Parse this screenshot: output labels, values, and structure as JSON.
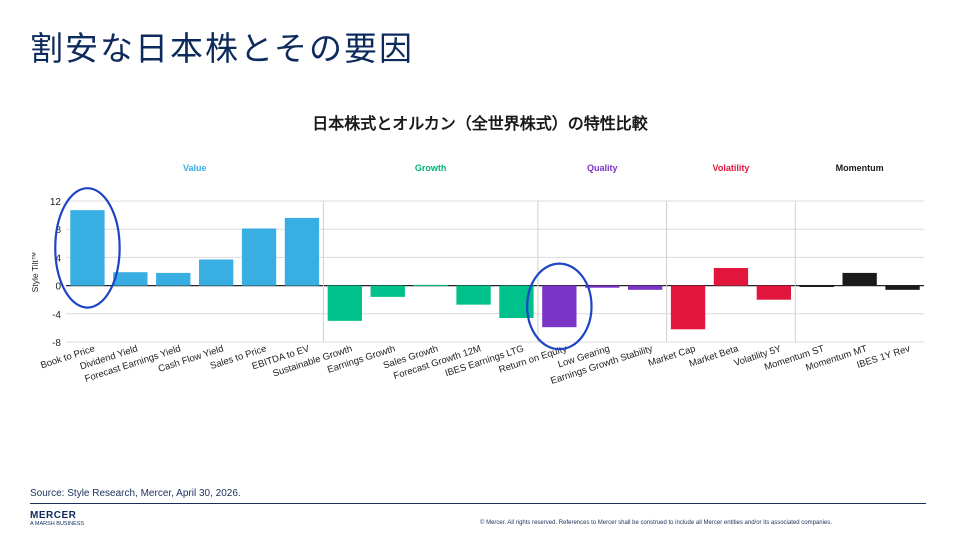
{
  "slide": {
    "title": "割安な日本株とその要因",
    "source": "Source: Style Research, Mercer, April 30, 2026.",
    "copyright": "© Mercer. All rights reserved. References to Mercer shall be construed to include all Mercer entities and/or its associated companies.",
    "logo": {
      "brand": "MERCER",
      "tagline": "A MARSH BUSINESS"
    }
  },
  "chart_data": {
    "type": "bar",
    "title": "日本株式とオルカン（全世界株式）の特性比較",
    "ylabel": "Style Tilt™",
    "ylim": [
      -8,
      12
    ],
    "yticks": [
      -8,
      -4,
      0,
      4,
      8,
      12
    ],
    "grid": true,
    "groups": [
      {
        "name": "Value",
        "color": "#39aee3",
        "label_color": "#39aee3"
      },
      {
        "name": "Growth",
        "color": "#00c08b",
        "label_color": "#00b07d"
      },
      {
        "name": "Quality",
        "color": "#7a35c7",
        "label_color": "#7a35c7"
      },
      {
        "name": "Volatility",
        "color": "#e2163c",
        "label_color": "#e2163c"
      },
      {
        "name": "Momentum",
        "color": "#1a1a1a",
        "label_color": "#1a1a1a"
      }
    ],
    "categories": [
      "Book to Price",
      "Dividend Yield",
      "Forecast Earnings Yield",
      "Cash Flow Yield",
      "Sales to Price",
      "EBITDA to EV",
      "Sustainable Growth",
      "Earnings Growth",
      "Sales Growth",
      "Forecast Growth 12M",
      "IBES Earnings LTG",
      "Return on Equity",
      "Low Gearing",
      "Earnings Growth Stability",
      "Market Cap",
      "Market Beta",
      "Volatility 5Y",
      "Momentum ST",
      "Momentum MT",
      "IBES 1Y Rev"
    ],
    "category_group": [
      0,
      0,
      0,
      0,
      0,
      0,
      1,
      1,
      1,
      1,
      1,
      2,
      2,
      2,
      3,
      3,
      3,
      4,
      4,
      4
    ],
    "values": [
      10.7,
      1.9,
      1.8,
      3.7,
      8.1,
      9.6,
      -5.0,
      -1.6,
      0.1,
      -2.7,
      -4.6,
      -5.9,
      -0.3,
      -0.6,
      -6.2,
      2.5,
      -2.0,
      -0.2,
      1.8,
      -0.6
    ],
    "highlighted": [
      "Book to Price",
      "Return on Equity"
    ]
  }
}
